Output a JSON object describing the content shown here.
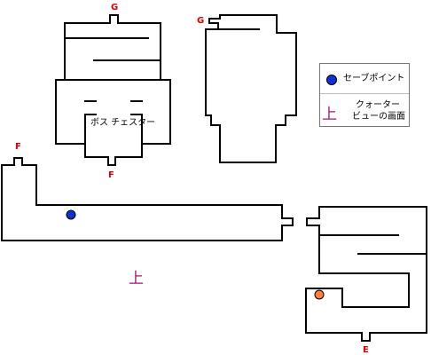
{
  "exits": {
    "g1": "G",
    "g2": "G",
    "f1": "F",
    "f2": "F",
    "e": "E"
  },
  "rooms": {
    "boss_chest": "ボス チェスター"
  },
  "markers": {
    "save_point_color": "#1030d0",
    "orange_point_color": "#ff8040",
    "up_symbol": "上"
  },
  "legend": {
    "save_point": "セーブポイント",
    "quarter_view_line1": "クォーター",
    "quarter_view_line2": "ビューの画面",
    "up_symbol": "上"
  }
}
